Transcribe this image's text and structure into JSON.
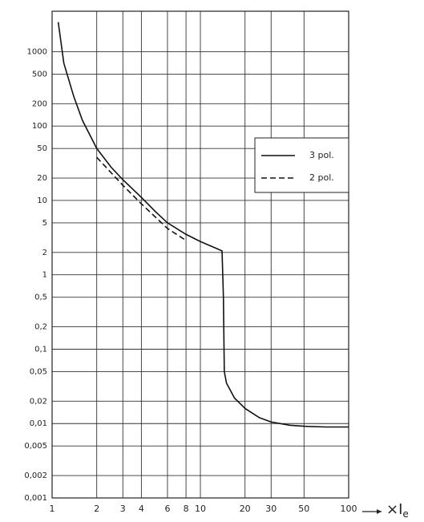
{
  "chart_data": {
    "type": "line",
    "xlabel": {
      "main": "×I",
      "sub": "e"
    },
    "xscale": "log",
    "yscale": "log",
    "grid": true,
    "legend": "upper-right",
    "xlim": [
      1,
      100
    ],
    "ylim": [
      0.001,
      3500
    ],
    "xticks": [
      1,
      2,
      3,
      4,
      6,
      8,
      10,
      20,
      30,
      50,
      100
    ],
    "yticks": [
      {
        "value": 0.001,
        "label": "0,001"
      },
      {
        "value": 0.002,
        "label": "0,002"
      },
      {
        "value": 0.005,
        "label": "0,005"
      },
      {
        "value": 0.01,
        "label": "0,01"
      },
      {
        "value": 0.02,
        "label": "0,02"
      },
      {
        "value": 0.05,
        "label": "0,05"
      },
      {
        "value": 0.1,
        "label": "0,1"
      },
      {
        "value": 0.2,
        "label": "0,2"
      },
      {
        "value": 0.5,
        "label": "0,5"
      },
      1,
      2,
      5,
      10,
      20,
      50,
      100,
      200,
      500,
      1000
    ],
    "series": [
      {
        "name": "3 pol.",
        "color": "#111111",
        "dash": "solid",
        "x": [
          1.1,
          1.2,
          1.4,
          1.6,
          2,
          2.5,
          3,
          4,
          5,
          6,
          8,
          10,
          12,
          14,
          14.3,
          14.5,
          15,
          17,
          20,
          25,
          30,
          40,
          50,
          70,
          100
        ],
        "values": [
          2500,
          700,
          250,
          120,
          50,
          28,
          19,
          11,
          7,
          5,
          3.5,
          2.8,
          2.4,
          2.1,
          0.5,
          0.05,
          0.035,
          0.022,
          0.016,
          0.012,
          0.0105,
          0.0095,
          0.0092,
          0.009,
          0.009
        ]
      },
      {
        "name": "2 pol.",
        "color": "#111111",
        "dash": "dashed",
        "x": [
          2,
          3,
          4,
          6,
          8
        ],
        "values": [
          38,
          16,
          9,
          4.2,
          2.9
        ]
      }
    ]
  }
}
